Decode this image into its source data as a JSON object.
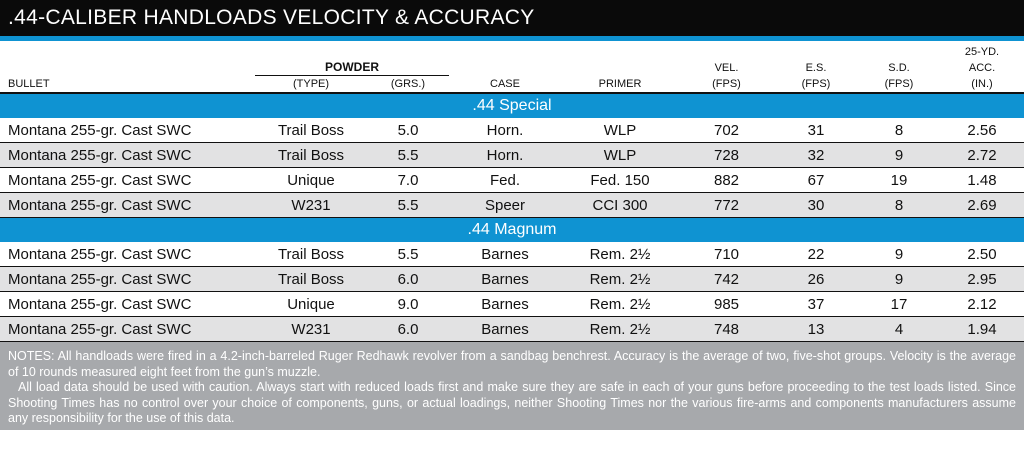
{
  "title": ".44-CALIBER HANDLOADS VELOCITY & ACCURACY",
  "headers": {
    "bullet": "BULLET",
    "powder_group": "POWDER",
    "powder_type": "(TYPE)",
    "powder_grs": "(GRS.)",
    "case": "CASE",
    "primer": "PRIMER",
    "vel_top": "VEL.",
    "vel_bottom": "(FPS)",
    "es_top": "E.S.",
    "es_bottom": "(FPS)",
    "sd_top": "S.D.",
    "sd_bottom": "(FPS)",
    "acc_top": "25-YD.",
    "acc_mid": "ACC.",
    "acc_bottom": "(IN.)"
  },
  "sections": [
    {
      "label": ".44 Special",
      "rows": [
        {
          "bullet": "Montana 255-gr. Cast SWC",
          "powder_type": "Trail Boss",
          "grs": "5.0",
          "case": "Horn.",
          "primer": "WLP",
          "vel": "702",
          "es": "31",
          "sd": "8",
          "acc": "2.56"
        },
        {
          "bullet": "Montana 255-gr. Cast SWC",
          "powder_type": "Trail Boss",
          "grs": "5.5",
          "case": "Horn.",
          "primer": "WLP",
          "vel": "728",
          "es": "32",
          "sd": "9",
          "acc": "2.72"
        },
        {
          "bullet": "Montana 255-gr. Cast SWC",
          "powder_type": "Unique",
          "grs": "7.0",
          "case": "Fed.",
          "primer": "Fed. 150",
          "vel": "882",
          "es": "67",
          "sd": "19",
          "acc": "1.48"
        },
        {
          "bullet": "Montana 255-gr. Cast SWC",
          "powder_type": "W231",
          "grs": "5.5",
          "case": "Speer",
          "primer": "CCI 300",
          "vel": "772",
          "es": "30",
          "sd": "8",
          "acc": "2.69"
        }
      ]
    },
    {
      "label": ".44 Magnum",
      "rows": [
        {
          "bullet": "Montana 255-gr. Cast SWC",
          "powder_type": "Trail Boss",
          "grs": "5.5",
          "case": "Barnes",
          "primer": "Rem. 2½",
          "vel": "710",
          "es": "22",
          "sd": "9",
          "acc": "2.50"
        },
        {
          "bullet": "Montana 255-gr. Cast SWC",
          "powder_type": "Trail Boss",
          "grs": "6.0",
          "case": "Barnes",
          "primer": "Rem. 2½",
          "vel": "742",
          "es": "26",
          "sd": "9",
          "acc": "2.95"
        },
        {
          "bullet": "Montana 255-gr. Cast SWC",
          "powder_type": "Unique",
          "grs": "9.0",
          "case": "Barnes",
          "primer": "Rem. 2½",
          "vel": "985",
          "es": "37",
          "sd": "17",
          "acc": "2.12"
        },
        {
          "bullet": "Montana 255-gr. Cast SWC",
          "powder_type": "W231",
          "grs": "6.0",
          "case": "Barnes",
          "primer": "Rem. 2½",
          "vel": "748",
          "es": "13",
          "sd": "4",
          "acc": "1.94"
        }
      ]
    }
  ],
  "notes": {
    "p1": "NOTES: All handloads were fired in a 4.2-inch-barreled Ruger Redhawk revolver from a sandbag benchrest. Accuracy is the average of two, five-shot groups. Velocity is the average of 10 rounds measured eight feet from the gun’s muzzle.",
    "p2": "All load data should be used with caution. Always start with reduced loads first and make sure they are safe in each of your guns before proceeding to the test loads listed. Since Shooting Times has no control over your choice of components, guns, or actual loadings, neither Shooting Times nor the various fire-arms and components manufacturers assume any responsibility for the use of this data."
  },
  "colors": {
    "title_bg": "#0a0a0a",
    "accent_blue": "#0f93d2",
    "alt_row": "#e2e2e3",
    "notes_bg": "#a7a9ac"
  }
}
